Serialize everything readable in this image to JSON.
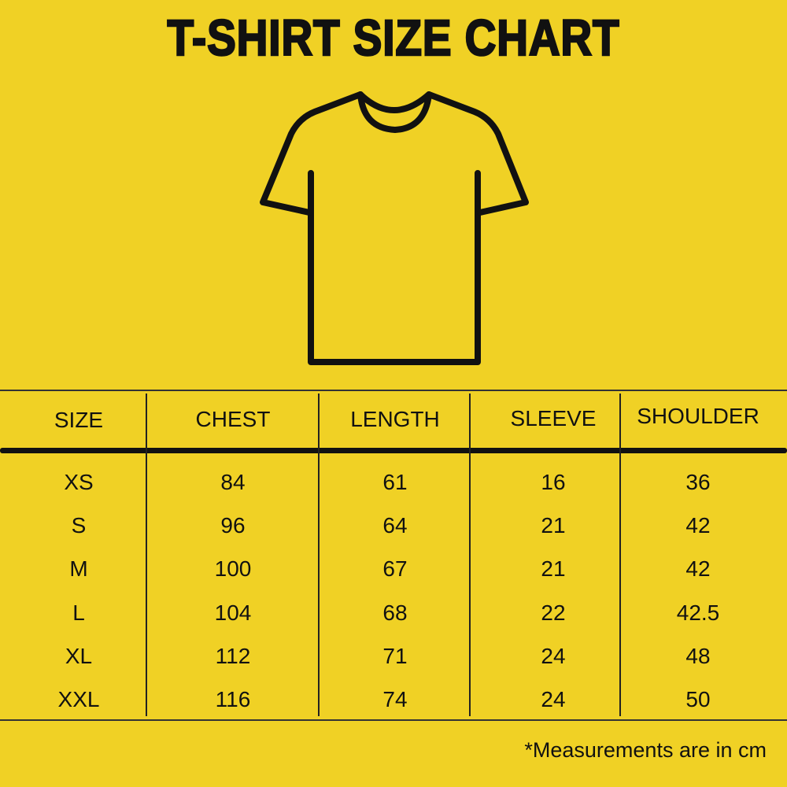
{
  "title": "T-SHIRT SIZE CHART",
  "colors": {
    "background": "#F0D125",
    "ink": "#111111"
  },
  "illustration": "t-shirt-outline-icon",
  "table": {
    "headers": [
      "SIZE",
      "CHEST",
      "LENGTH",
      "SLEEVE",
      "SHOULDER"
    ],
    "rows": [
      [
        "XS",
        "84",
        "61",
        "16",
        "36"
      ],
      [
        "S",
        "96",
        "64",
        "21",
        "42"
      ],
      [
        "M",
        "100",
        "67",
        "21",
        "42"
      ],
      [
        "L",
        "104",
        "68",
        "22",
        "42.5"
      ],
      [
        "XL",
        "112",
        "71",
        "24",
        "48"
      ],
      [
        "XXL",
        "116",
        "74",
        "24",
        "50"
      ]
    ]
  },
  "footer": "*Measurements are in cm"
}
